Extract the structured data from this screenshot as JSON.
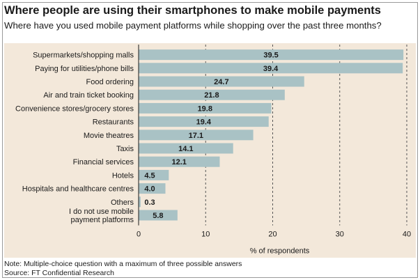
{
  "header": {
    "title": "Where people are using their smartphones to make mobile payments",
    "subtitle": "Where have you used mobile payment platforms while shopping over the past three months?"
  },
  "footer": {
    "note": "Note: Multiple-choice question with a maximum of three possible answers",
    "source": "Source: FT Confidential Research"
  },
  "colors": {
    "bar": "#a9c2c5",
    "background": "#f3e8da"
  },
  "chart_data": {
    "type": "bar",
    "orientation": "horizontal",
    "title": "Where people are using their smartphones to make mobile payments",
    "subtitle": "Where have you used mobile payment platforms while shopping over the past three months?",
    "xlabel": "% of respondents",
    "ylabel": "",
    "xlim": [
      0,
      40
    ],
    "xticks": [
      "0",
      "10",
      "20",
      "30",
      "40"
    ],
    "grid": "dashed vertical lines at 10, 20, 30, 40",
    "categories": [
      [
        "Supermarkets/shopping malls"
      ],
      [
        "Paying for utilities/phone bills"
      ],
      [
        "Food ordering"
      ],
      [
        "Air and train ticket booking"
      ],
      [
        "Convenience stores/grocery stores"
      ],
      [
        "Restaurants"
      ],
      [
        "Movie theatres"
      ],
      [
        "Taxis"
      ],
      [
        "Financial services"
      ],
      [
        "Hotels"
      ],
      [
        "Hospitals and healthcare centres"
      ],
      [
        "Others"
      ],
      [
        "I do not use mobile",
        "payment platforms"
      ]
    ],
    "values": [
      39.5,
      39.4,
      24.7,
      21.8,
      19.8,
      19.4,
      17.1,
      14.1,
      12.1,
      4.5,
      4.0,
      0.3,
      5.8
    ],
    "value_labels": [
      "39.5",
      "39.4",
      "24.7",
      "21.8",
      "19.8",
      "19.4",
      "17.1",
      "14.1",
      "12.1",
      "4.5",
      "4.0",
      "0.3",
      "5.8"
    ]
  }
}
